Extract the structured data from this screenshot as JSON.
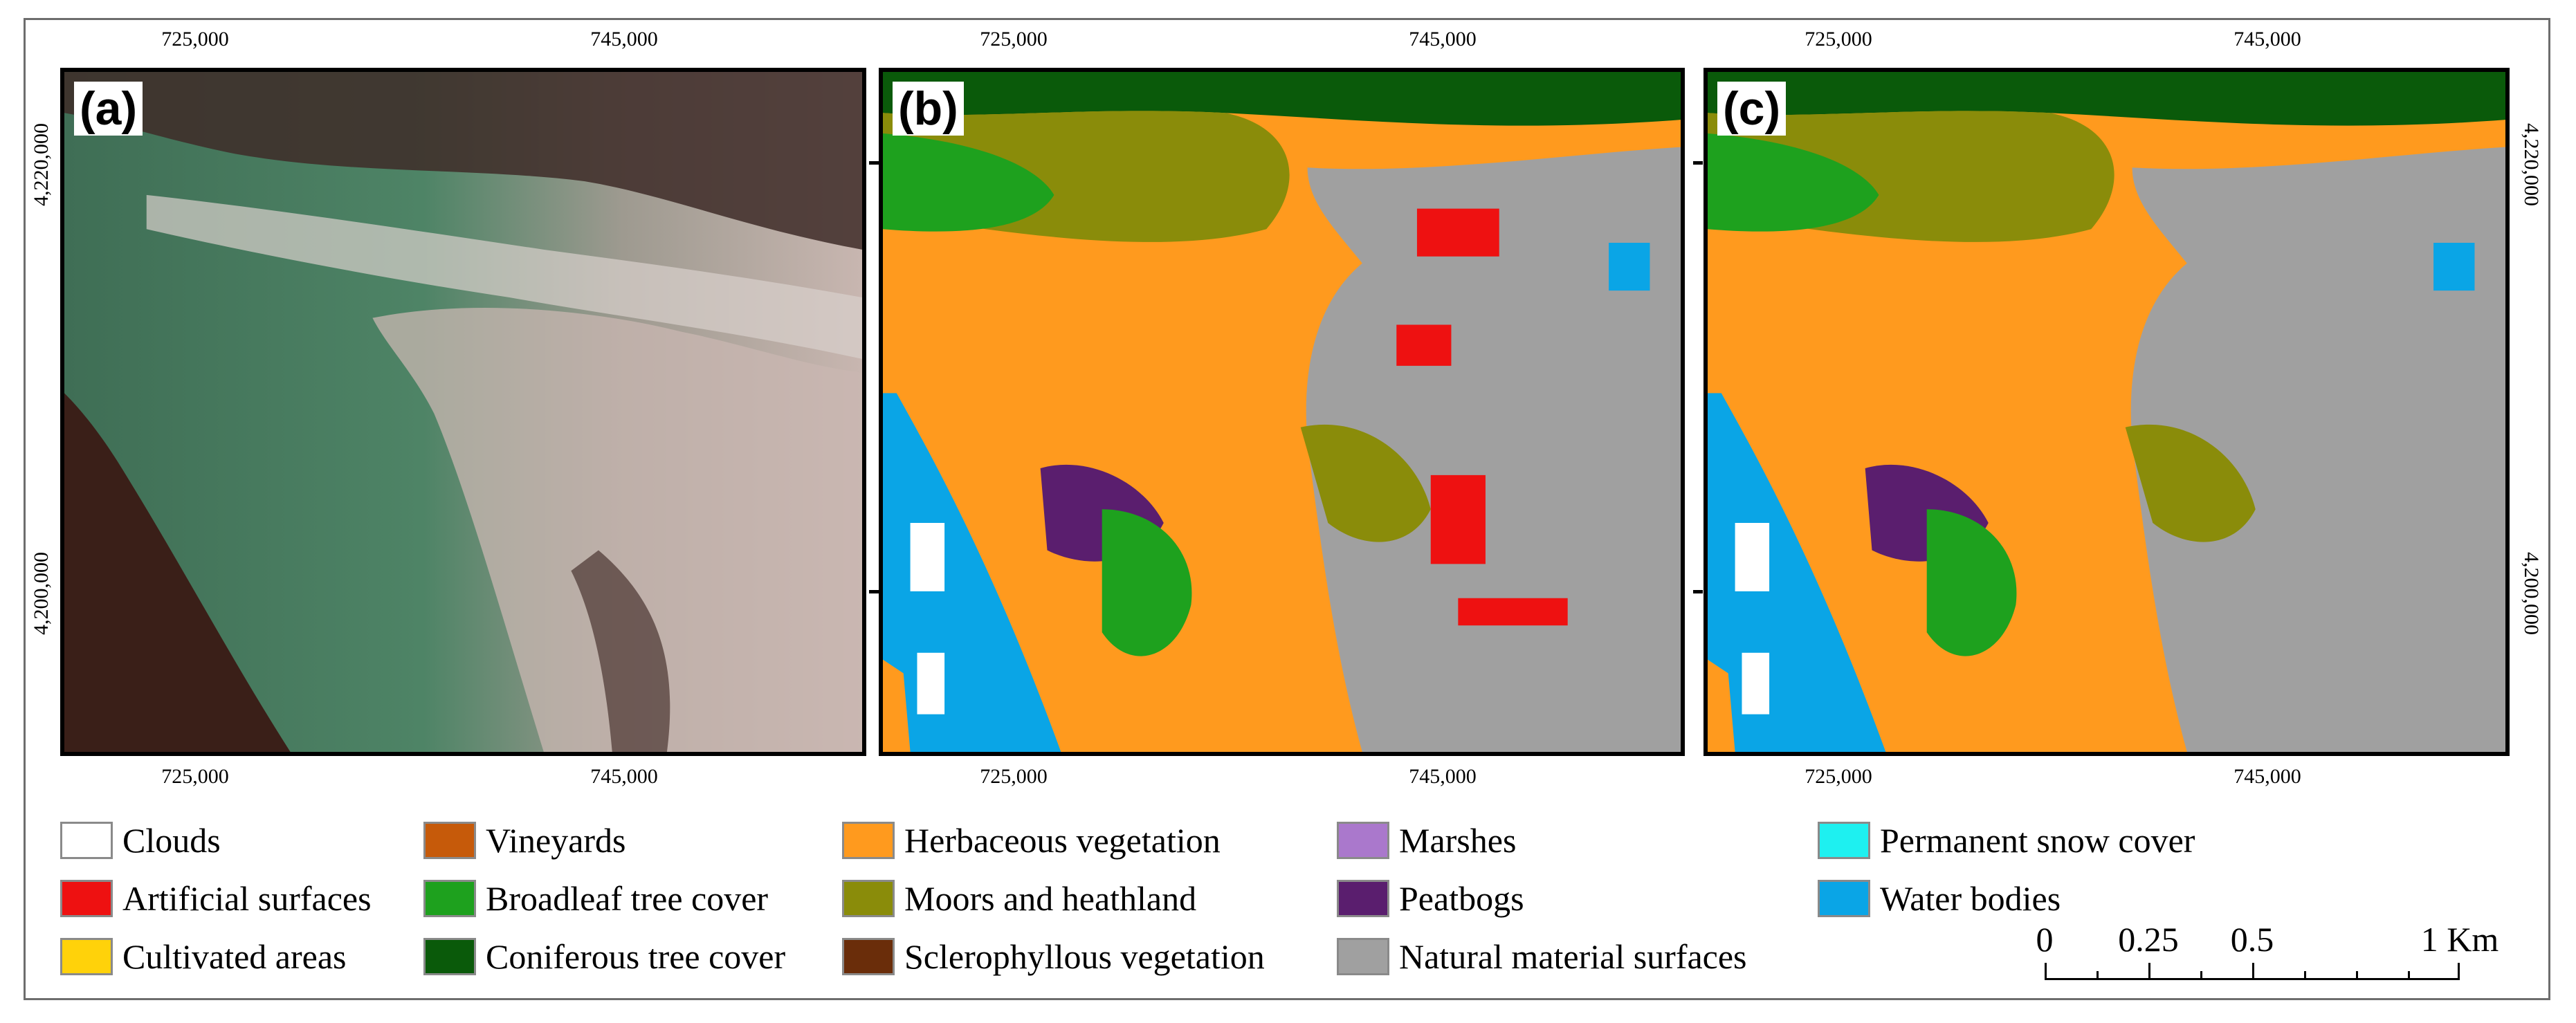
{
  "panels": [
    {
      "id": "a",
      "label": "(a)",
      "kind": "satellite-image"
    },
    {
      "id": "b",
      "label": "(b)",
      "kind": "land-cover-classification"
    },
    {
      "id": "c",
      "label": "(c)",
      "kind": "land-cover-classification"
    }
  ],
  "axes": {
    "easting_labels": [
      "725,000",
      "745,000"
    ],
    "northing_labels": [
      "4,220,000",
      "4,200,000"
    ]
  },
  "legend": [
    {
      "label": "Clouds",
      "color": "#ffffff"
    },
    {
      "label": "Artificial surfaces",
      "color": "#ee1111"
    },
    {
      "label": "Cultivated areas",
      "color": "#ffd20a"
    },
    {
      "label": "Vineyards",
      "color": "#c65a0a"
    },
    {
      "label": "Broadleaf tree cover",
      "color": "#1ea11e"
    },
    {
      "label": "Coniferous tree cover",
      "color": "#0a5a0a"
    },
    {
      "label": "Herbaceous vegetation",
      "color": "#ff9a1e"
    },
    {
      "label": "Moors and heathland",
      "color": "#8a8c0a"
    },
    {
      "label": "Sclerophyllous vegetation",
      "color": "#6a2d0a"
    },
    {
      "label": "Marshes",
      "color": "#aa78cc"
    },
    {
      "label": "Peatbogs",
      "color": "#5a1e6e"
    },
    {
      "label": "Natural material surfaces",
      "color": "#a0a0a0"
    },
    {
      "label": "Permanent snow cover",
      "color": "#1ef0f0"
    },
    {
      "label": "Water bodies",
      "color": "#0aa5e6"
    }
  ],
  "scale_bar": {
    "labels": [
      "0",
      "0.25",
      "0.5",
      "1 Km"
    ],
    "values": [
      0,
      0.25,
      0.5,
      1
    ]
  }
}
